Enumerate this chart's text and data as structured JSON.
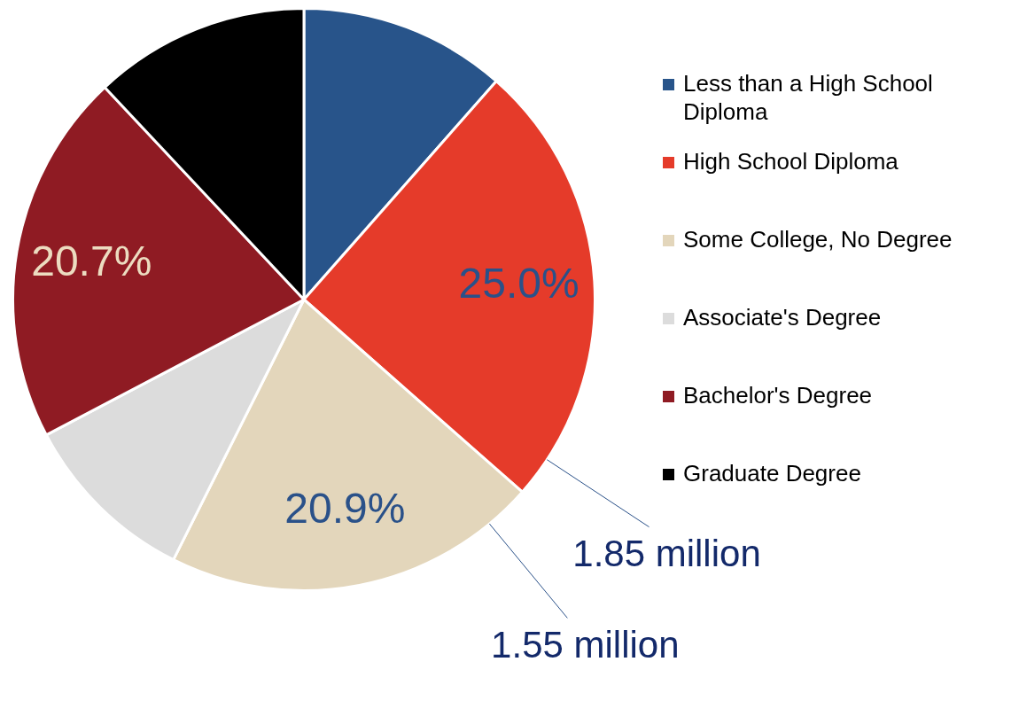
{
  "chart_data": {
    "type": "pie",
    "categories": [
      "Less than a High School Diploma",
      "High School Diploma",
      "Some College, No Degree",
      "Associate's Degree",
      "Bachelor's Degree",
      "Graduate Degree"
    ],
    "values": [
      11.5,
      25.0,
      20.9,
      9.9,
      20.7,
      12.0
    ],
    "colors": [
      "#28548a",
      "#e53b2a",
      "#e3d6bb",
      "#dcdcdc",
      "#8f1b23",
      "#000000"
    ],
    "value_labels": [
      null,
      "25.0%",
      "20.9%",
      null,
      "20.7%",
      null
    ],
    "legend": "top right",
    "annotations": [
      {
        "text": "1.85 million",
        "x": "High School Diploma"
      },
      {
        "text": "1.55 million",
        "x": "Some College, No Degree"
      }
    ]
  }
}
